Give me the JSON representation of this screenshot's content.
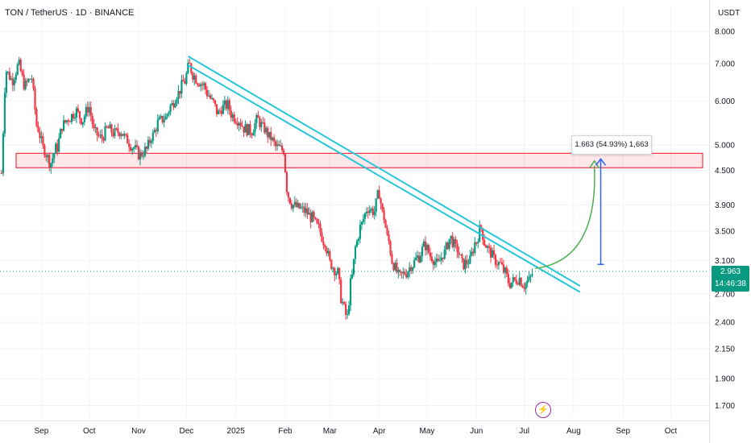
{
  "header": {
    "title": "TON / TetherUS · 1D · BINANCE",
    "unit": "USDT"
  },
  "price": {
    "last": "2.963",
    "countdown": "14:46:38",
    "color": "#089981"
  },
  "measure": {
    "label": "1.663 (54.93%) 1,663"
  },
  "icons": {
    "event_marker": "lightning-bolt-icon"
  },
  "chart_data": {
    "type": "candlestick",
    "scale": "log",
    "ylim": [
      1.62,
      8.3
    ],
    "xlim": [
      "2024-08-06",
      "2025-10-25"
    ],
    "y_ticks": [
      "8.000",
      "7.000",
      "6.000",
      "5.000",
      "4.500",
      "3.900",
      "3.500",
      "3.100",
      "2.700",
      "2.400",
      "2.150",
      "1.900",
      "1.700"
    ],
    "x_ticks": [
      {
        "label": "Sep",
        "date": "2024-09-01"
      },
      {
        "label": "Oct",
        "date": "2024-10-01"
      },
      {
        "label": "Nov",
        "date": "2024-11-01"
      },
      {
        "label": "Dec",
        "date": "2024-12-01"
      },
      {
        "label": "2025",
        "date": "2025-01-01"
      },
      {
        "label": "Feb",
        "date": "2025-02-01"
      },
      {
        "label": "Mar",
        "date": "2025-03-01"
      },
      {
        "label": "Apr",
        "date": "2025-04-01"
      },
      {
        "label": "May",
        "date": "2025-05-01"
      },
      {
        "label": "Jun",
        "date": "2025-06-01"
      },
      {
        "label": "Jul",
        "date": "2025-07-01"
      },
      {
        "label": "Aug",
        "date": "2025-08-01"
      },
      {
        "label": "Sep",
        "date": "2025-09-01"
      },
      {
        "label": "Oct",
        "date": "2025-10-01"
      }
    ],
    "up_color": "#089981",
    "down_color": "#f23645",
    "closes": [
      [
        "2024-08-07",
        4.45
      ],
      [
        "2024-08-10",
        6.8
      ],
      [
        "2024-08-14",
        6.55
      ],
      [
        "2024-08-18",
        6.95
      ],
      [
        "2024-08-22",
        6.4
      ],
      [
        "2024-08-26",
        6.6
      ],
      [
        "2024-08-30",
        5.35
      ],
      [
        "2024-09-03",
        4.9
      ],
      [
        "2024-09-07",
        4.65
      ],
      [
        "2024-09-11",
        4.95
      ],
      [
        "2024-09-15",
        5.45
      ],
      [
        "2024-09-19",
        5.6
      ],
      [
        "2024-09-23",
        5.75
      ],
      [
        "2024-09-27",
        5.55
      ],
      [
        "2024-10-01",
        5.85
      ],
      [
        "2024-10-05",
        5.25
      ],
      [
        "2024-10-09",
        5.15
      ],
      [
        "2024-10-13",
        5.35
      ],
      [
        "2024-10-17",
        5.25
      ],
      [
        "2024-10-21",
        5.3
      ],
      [
        "2024-10-25",
        5.1
      ],
      [
        "2024-10-29",
        4.95
      ],
      [
        "2024-11-02",
        4.8
      ],
      [
        "2024-11-06",
        4.9
      ],
      [
        "2024-11-10",
        5.2
      ],
      [
        "2024-11-14",
        5.5
      ],
      [
        "2024-11-18",
        5.6
      ],
      [
        "2024-11-22",
        5.9
      ],
      [
        "2024-11-26",
        6.2
      ],
      [
        "2024-11-30",
        6.5
      ],
      [
        "2024-12-03",
        6.95
      ],
      [
        "2024-12-06",
        6.65
      ],
      [
        "2024-12-09",
        6.5
      ],
      [
        "2024-12-12",
        6.4
      ],
      [
        "2024-12-15",
        6.15
      ],
      [
        "2024-12-18",
        5.95
      ],
      [
        "2024-12-21",
        5.7
      ],
      [
        "2024-12-24",
        5.85
      ],
      [
        "2024-12-27",
        5.9
      ],
      [
        "2024-12-30",
        5.65
      ],
      [
        "2025-01-03",
        5.55
      ],
      [
        "2025-01-07",
        5.35
      ],
      [
        "2025-01-11",
        5.3
      ],
      [
        "2025-01-15",
        5.55
      ],
      [
        "2025-01-19",
        5.35
      ],
      [
        "2025-01-23",
        5.15
      ],
      [
        "2025-01-27",
        4.95
      ],
      [
        "2025-01-31",
        4.9
      ],
      [
        "2025-02-03",
        4.05
      ],
      [
        "2025-02-06",
        3.9
      ],
      [
        "2025-02-10",
        3.85
      ],
      [
        "2025-02-14",
        3.8
      ],
      [
        "2025-02-18",
        3.7
      ],
      [
        "2025-02-22",
        3.55
      ],
      [
        "2025-02-26",
        3.35
      ],
      [
        "2025-03-02",
        3.05
      ],
      [
        "2025-03-06",
        2.95
      ],
      [
        "2025-03-09",
        2.6
      ],
      [
        "2025-03-12",
        2.45
      ],
      [
        "2025-03-15",
        2.9
      ],
      [
        "2025-03-18",
        3.35
      ],
      [
        "2025-03-21",
        3.6
      ],
      [
        "2025-03-25",
        3.85
      ],
      [
        "2025-03-29",
        3.8
      ],
      [
        "2025-04-01",
        4.1
      ],
      [
        "2025-04-04",
        3.7
      ],
      [
        "2025-04-07",
        3.35
      ],
      [
        "2025-04-10",
        3.05
      ],
      [
        "2025-04-14",
        2.9
      ],
      [
        "2025-04-18",
        2.95
      ],
      [
        "2025-04-22",
        3.05
      ],
      [
        "2025-04-26",
        3.15
      ],
      [
        "2025-04-30",
        3.3
      ],
      [
        "2025-05-04",
        3.15
      ],
      [
        "2025-05-08",
        3.05
      ],
      [
        "2025-05-12",
        3.2
      ],
      [
        "2025-05-16",
        3.4
      ],
      [
        "2025-05-20",
        3.25
      ],
      [
        "2025-05-24",
        3.05
      ],
      [
        "2025-05-28",
        3.1
      ],
      [
        "2025-06-01",
        3.35
      ],
      [
        "2025-06-04",
        3.55
      ],
      [
        "2025-06-07",
        3.3
      ],
      [
        "2025-06-10",
        3.2
      ],
      [
        "2025-06-13",
        3.1
      ],
      [
        "2025-06-16",
        3.05
      ],
      [
        "2025-06-19",
        2.95
      ],
      [
        "2025-06-22",
        2.82
      ],
      [
        "2025-06-25",
        2.85
      ],
      [
        "2025-06-28",
        2.88
      ],
      [
        "2025-07-01",
        2.8
      ],
      [
        "2025-07-04",
        2.85
      ],
      [
        "2025-07-07",
        2.95
      ]
    ],
    "zone": {
      "from": "2024-08-07",
      "to": "2025-10-25",
      "low": 4.55,
      "high": 4.83
    },
    "trendlines": [
      {
        "from": [
          "2024-12-02",
          7.22
        ],
        "to": [
          "2025-08-05",
          2.79
        ]
      },
      {
        "from": [
          "2024-12-02",
          6.96
        ],
        "to": [
          "2025-08-05",
          2.72
        ]
      }
    ],
    "measure": {
      "date": "2025-08-18",
      "from": 3.05,
      "to": 4.72
    },
    "projection": {
      "from": [
        "2025-07-08",
        3.0
      ],
      "to": [
        "2025-08-14",
        4.68
      ]
    },
    "price_line": 2.963
  }
}
